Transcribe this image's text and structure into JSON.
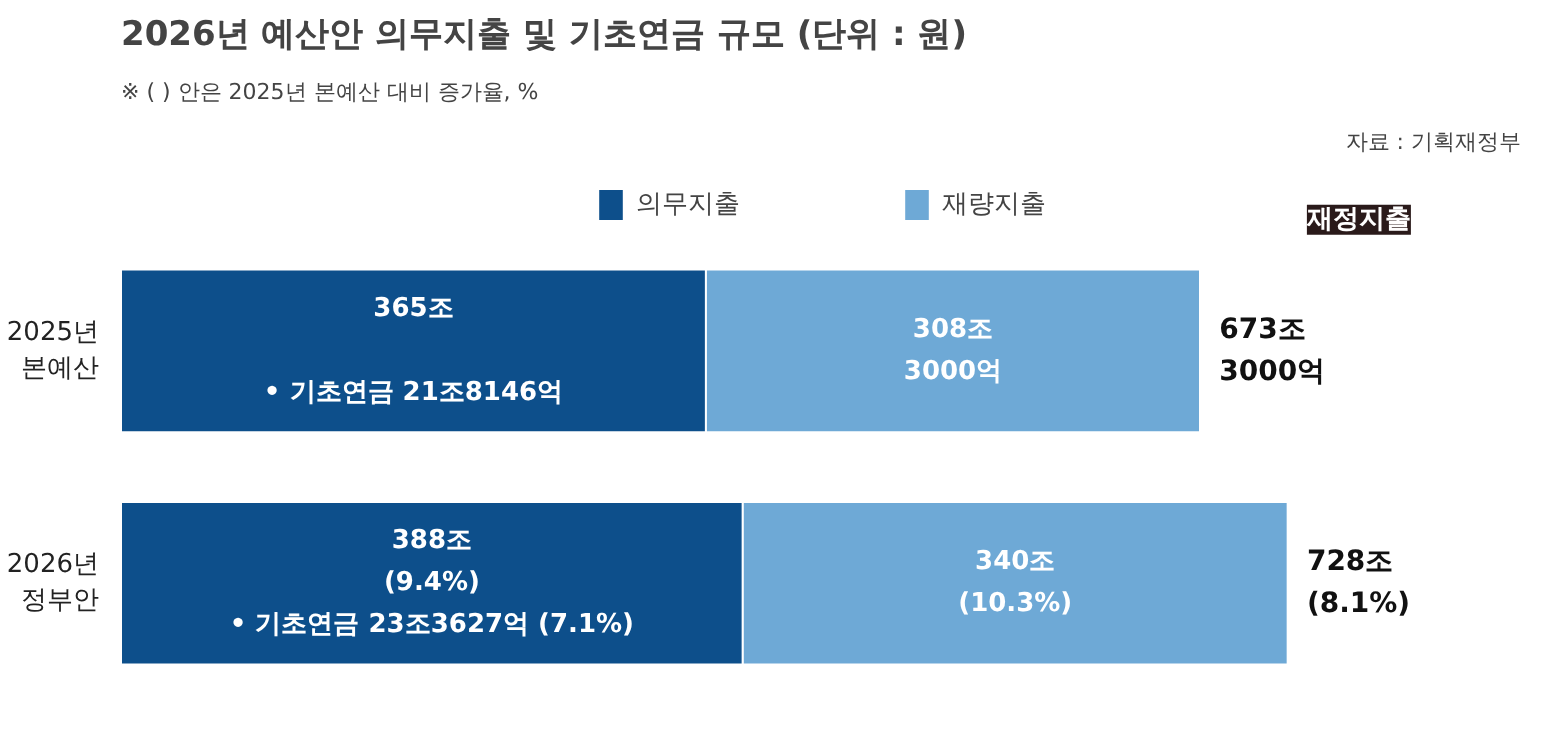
{
  "chart_data": {
    "type": "bar",
    "orientation": "horizontal",
    "stacked": true,
    "title": "2026년 예산안 의무지출 및 기초연금 규모 (단위 : 원)",
    "subtitle": "※ (   ) 안은 2025년 본예산 대비 증가율, %",
    "annotations": [
      "자료 : 기획재정부",
      "재정지출"
    ],
    "categories": [
      "2025년\n본예산",
      "2026년\n정부안"
    ],
    "series": [
      {
        "name": "의무지출",
        "color": "#0d4f8b",
        "values": [
          365,
          388
        ],
        "value_labels": [
          "365조\n\n• 기초연금 21조8146억",
          "388조\n(9.4%)\n• 기초연금 23조3627억 (7.1%)"
        ]
      },
      {
        "name": "재량지출",
        "color": "#6ea9d6",
        "values": [
          308.3,
          340
        ],
        "value_labels": [
          "308조\n3000억",
          "340조\n(10.3%)"
        ]
      }
    ],
    "totals": [
      "673조\n3000억",
      "728조\n(8.1%)"
    ],
    "tick_labels": false,
    "grid": false,
    "legend": "top"
  }
}
